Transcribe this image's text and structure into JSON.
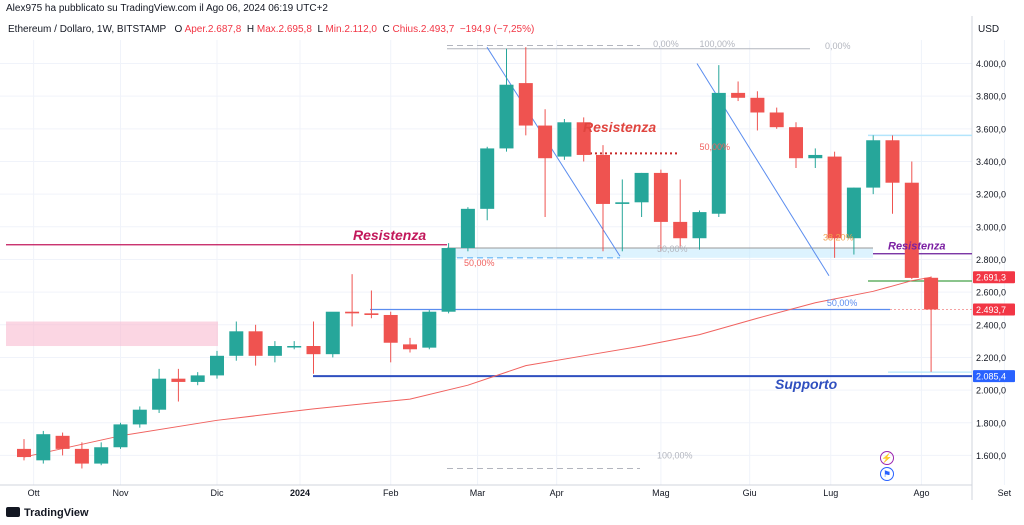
{
  "header": {
    "published": "Alex975 ha pubblicato su TradingView.com il Ago 06, 2024 06:19 UTC+2",
    "symbol": "Ethereum / Dollaro, 1W, BITSTAMP",
    "open_label": "O",
    "open": "Aper.2.687,8",
    "high_label": "H",
    "high": "Max.2.695,8",
    "low_label": "L",
    "low": "Min.2.112,0",
    "close_label": "C",
    "close": "Chius.2.493,7",
    "change": "−194,9 (−7,25%)",
    "currency": "USD"
  },
  "footer": {
    "brand": "TradingView"
  },
  "colors": {
    "up": "#26a69a",
    "down": "#ef5350",
    "ma": "#f0625f",
    "support": "#2f4fbf",
    "resistance": "#c2185b",
    "fib": "#5b8def"
  },
  "icons": [
    "lightning-icon",
    "flag-icon"
  ],
  "chart_data": {
    "type": "candlestick",
    "interval": "1W",
    "y_ticks": [
      1600,
      1800,
      2000,
      2200,
      2400,
      2600,
      2800,
      3000,
      3200,
      3400,
      3600,
      3800,
      4000
    ],
    "y_tick_labels": [
      "1.600,0",
      "1.800,0",
      "2.000,0",
      "2.200,0",
      "2.400,0",
      "2.600,0",
      "2.800,0",
      "3.000,0",
      "3.200,0",
      "3.400,0",
      "3.600,0",
      "3.800,0",
      "4.000,0"
    ],
    "x_labels": [
      "Ott",
      "Nov",
      "Dic",
      "2024",
      "Feb",
      "Mar",
      "Apr",
      "Mag",
      "Giu",
      "Lug",
      "Ago",
      "Set"
    ],
    "x_label_positions": [
      0.5,
      5,
      10,
      14.3,
      19,
      23.5,
      27.6,
      33,
      37.6,
      41.8,
      46.5,
      50.8
    ],
    "candles": [
      {
        "o": 1640,
        "h": 1700,
        "l": 1570,
        "c": 1590
      },
      {
        "o": 1570,
        "h": 1750,
        "l": 1550,
        "c": 1730
      },
      {
        "o": 1720,
        "h": 1740,
        "l": 1600,
        "c": 1640
      },
      {
        "o": 1640,
        "h": 1680,
        "l": 1520,
        "c": 1550
      },
      {
        "o": 1550,
        "h": 1680,
        "l": 1540,
        "c": 1650
      },
      {
        "o": 1650,
        "h": 1800,
        "l": 1640,
        "c": 1790
      },
      {
        "o": 1790,
        "h": 1900,
        "l": 1770,
        "c": 1880
      },
      {
        "o": 1880,
        "h": 2130,
        "l": 1860,
        "c": 2070
      },
      {
        "o": 2070,
        "h": 2130,
        "l": 1930,
        "c": 2050
      },
      {
        "o": 2050,
        "h": 2110,
        "l": 2030,
        "c": 2090
      },
      {
        "o": 2090,
        "h": 2240,
        "l": 2070,
        "c": 2210
      },
      {
        "o": 2210,
        "h": 2420,
        "l": 2180,
        "c": 2360
      },
      {
        "o": 2360,
        "h": 2400,
        "l": 2150,
        "c": 2210
      },
      {
        "o": 2210,
        "h": 2300,
        "l": 2170,
        "c": 2270
      },
      {
        "o": 2270,
        "h": 2300,
        "l": 2250,
        "c": 2270
      },
      {
        "o": 2270,
        "h": 2420,
        "l": 2100,
        "c": 2220
      },
      {
        "o": 2220,
        "h": 2470,
        "l": 2200,
        "c": 2480
      },
      {
        "o": 2480,
        "h": 2710,
        "l": 2390,
        "c": 2470
      },
      {
        "o": 2470,
        "h": 2610,
        "l": 2440,
        "c": 2460
      },
      {
        "o": 2460,
        "h": 2480,
        "l": 2170,
        "c": 2290
      },
      {
        "o": 2280,
        "h": 2320,
        "l": 2230,
        "c": 2250
      },
      {
        "o": 2260,
        "h": 2490,
        "l": 2250,
        "c": 2480
      },
      {
        "o": 2480,
        "h": 2900,
        "l": 2470,
        "c": 2870
      },
      {
        "o": 2870,
        "h": 3120,
        "l": 2850,
        "c": 3110
      },
      {
        "o": 3110,
        "h": 3490,
        "l": 3040,
        "c": 3480
      },
      {
        "o": 3480,
        "h": 4090,
        "l": 3460,
        "c": 3870
      },
      {
        "o": 3880,
        "h": 4100,
        "l": 3560,
        "c": 3620
      },
      {
        "o": 3620,
        "h": 3720,
        "l": 3060,
        "c": 3420
      },
      {
        "o": 3430,
        "h": 3660,
        "l": 3410,
        "c": 3640
      },
      {
        "o": 3640,
        "h": 3670,
        "l": 3400,
        "c": 3440
      },
      {
        "o": 3440,
        "h": 3500,
        "l": 2850,
        "c": 3140
      },
      {
        "o": 3140,
        "h": 3290,
        "l": 2850,
        "c": 3150
      },
      {
        "o": 3150,
        "h": 3330,
        "l": 3060,
        "c": 3330
      },
      {
        "o": 3330,
        "h": 3350,
        "l": 2850,
        "c": 3030
      },
      {
        "o": 3030,
        "h": 3290,
        "l": 2870,
        "c": 2930
      },
      {
        "o": 2930,
        "h": 3100,
        "l": 2860,
        "c": 3090
      },
      {
        "o": 3080,
        "h": 3990,
        "l": 3060,
        "c": 3820
      },
      {
        "o": 3820,
        "h": 3890,
        "l": 3770,
        "c": 3790
      },
      {
        "o": 3790,
        "h": 3830,
        "l": 3590,
        "c": 3700
      },
      {
        "o": 3700,
        "h": 3730,
        "l": 3600,
        "c": 3610
      },
      {
        "o": 3610,
        "h": 3640,
        "l": 3360,
        "c": 3420
      },
      {
        "o": 3420,
        "h": 3480,
        "l": 3360,
        "c": 3440
      },
      {
        "o": 3430,
        "h": 3460,
        "l": 2810,
        "c": 2930
      },
      {
        "o": 2930,
        "h": 3240,
        "l": 2830,
        "c": 3240
      },
      {
        "o": 3240,
        "h": 3560,
        "l": 3200,
        "c": 3530
      },
      {
        "o": 3530,
        "h": 3560,
        "l": 3080,
        "c": 3270
      },
      {
        "o": 3270,
        "h": 3400,
        "l": 2680,
        "c": 2687
      },
      {
        "o": 2687.8,
        "h": 2695.8,
        "l": 2112.0,
        "c": 2493.7
      }
    ],
    "moving_average": [
      [
        0,
        1590
      ],
      [
        5,
        1720
      ],
      [
        10,
        1815
      ],
      [
        15,
        1885
      ],
      [
        20,
        1945
      ],
      [
        23,
        2030
      ],
      [
        26,
        2150
      ],
      [
        29,
        2210
      ],
      [
        32,
        2270
      ],
      [
        35,
        2340
      ],
      [
        38,
        2440
      ],
      [
        41,
        2535
      ],
      [
        44,
        2605
      ],
      [
        46,
        2670
      ],
      [
        47,
        2691.3
      ]
    ],
    "price_labels": [
      {
        "value": 2691.3,
        "text": "2.691,3",
        "color": "#f23645"
      },
      {
        "value": 2493.7,
        "text": "2.493,7",
        "color": "#f23645"
      },
      {
        "value": 2085.4,
        "text": "2.085,4",
        "color": "#2962ff"
      }
    ],
    "annotations": {
      "resistance_left": "Resistenza",
      "resistance_center": "Resistenza",
      "resistance_right": "Resistenza",
      "support": "Supporto",
      "fib_labels": [
        {
          "text": "0,00%",
          "x": 32.6,
          "y": 4100,
          "color": "#b2b5be"
        },
        {
          "text": "100,00%",
          "x": 35.0,
          "y": 4100,
          "color": "#b2b5be"
        },
        {
          "text": "0,00%",
          "x": 41.5,
          "y": 4090,
          "color": "#b2b5be"
        },
        {
          "text": "50,00%",
          "x": 22.8,
          "y": 2760,
          "color": "#f0625f"
        },
        {
          "text": "50,00%",
          "x": 32.8,
          "y": 2845,
          "color": "#b2b5be"
        },
        {
          "text": "50,00%",
          "x": 35.0,
          "y": 3470,
          "color": "#f0625f"
        },
        {
          "text": "38,20%",
          "x": 41.4,
          "y": 2915,
          "color": "#f0a050"
        },
        {
          "text": "50,00%",
          "x": 41.6,
          "y": 2515,
          "color": "#5b8def"
        },
        {
          "text": "100,00%",
          "x": 32.8,
          "y": 1580,
          "color": "#b2b5be"
        }
      ],
      "support_level": 2085.4,
      "resistance_level": 2890,
      "resistance_right_level": 2835,
      "fib_level_line": 2493.7,
      "green_level": 2668
    }
  }
}
